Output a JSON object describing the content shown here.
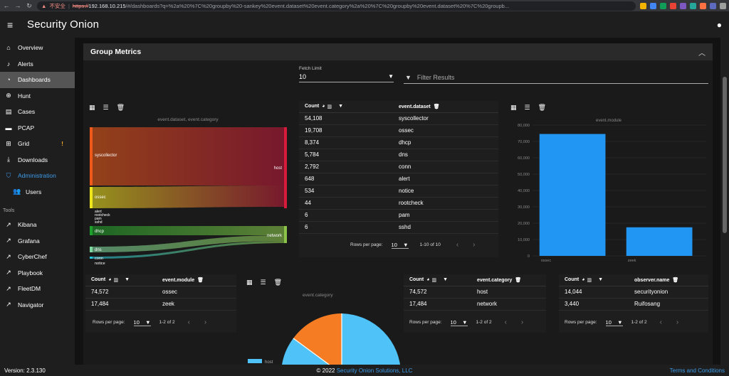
{
  "browser": {
    "security_warning": "不安全",
    "url_scheme": "https://",
    "url_host": "192.168.10.215",
    "url_rest": "/#/dashboards?q=%2a%20%7C%20groupby%20-sankey%20event.dataset%20event.category%2a%20%7C%20groupby%20event.dataset%20%7C%20groupb..."
  },
  "header": {
    "brand": "Security Onion"
  },
  "sidebar": {
    "items": [
      {
        "label": "Overview",
        "icon": "home-icon"
      },
      {
        "label": "Alerts",
        "icon": "bell-icon"
      },
      {
        "label": "Dashboards",
        "icon": "pie-icon"
      },
      {
        "label": "Hunt",
        "icon": "crosshair-icon"
      },
      {
        "label": "Cases",
        "icon": "briefcase-icon"
      },
      {
        "label": "PCAP",
        "icon": "folder-icon"
      },
      {
        "label": "Grid",
        "icon": "grid-icon",
        "badge": "!"
      },
      {
        "label": "Downloads",
        "icon": "download-icon"
      },
      {
        "label": "Administration",
        "icon": "shield-icon"
      },
      {
        "label": "Users",
        "icon": "users-icon"
      }
    ],
    "tools_label": "Tools",
    "tools": [
      "Kibana",
      "Grafana",
      "CyberChef",
      "Playbook",
      "FleetDM",
      "Navigator"
    ]
  },
  "group": {
    "title": "Group Metrics"
  },
  "fetch": {
    "label": "Fetch Limit",
    "value": "10"
  },
  "filter": {
    "placeholder": "Filter Results"
  },
  "sankey": {
    "title": "event.dataset, event.category",
    "sources": [
      "syscollector",
      "ossec",
      "alert",
      "rootcheck",
      "pam",
      "sshd",
      "dhcp",
      "dns",
      "conn",
      "notice"
    ],
    "targets": [
      "host",
      "network"
    ]
  },
  "dataset_table": {
    "headers": [
      "Count",
      "event.dataset"
    ],
    "rows": [
      [
        "54,108",
        "syscollector"
      ],
      [
        "19,708",
        "ossec"
      ],
      [
        "8,374",
        "dhcp"
      ],
      [
        "5,784",
        "dns"
      ],
      [
        "2,792",
        "conn"
      ],
      [
        "648",
        "alert"
      ],
      [
        "534",
        "notice"
      ],
      [
        "44",
        "rootcheck"
      ],
      [
        "6",
        "pam"
      ],
      [
        "6",
        "sshd"
      ]
    ],
    "rows_per_page_label": "Rows per page:",
    "rows_per_page": "10",
    "range": "1-10 of 10"
  },
  "chart_data": {
    "type": "bar",
    "title": "event.module",
    "categories": [
      "ossec",
      "zeek"
    ],
    "values": [
      74572,
      17484
    ],
    "ylim": [
      0,
      80000
    ],
    "yticks": [
      "0",
      "10,000",
      "20,000",
      "30,000",
      "40,000",
      "50,000",
      "60,000",
      "70,000",
      "80,000"
    ],
    "color": "#2196f3"
  },
  "module_table": {
    "headers": [
      "Count",
      "event.module"
    ],
    "rows": [
      [
        "74,572",
        "ossec"
      ],
      [
        "17,484",
        "zeek"
      ]
    ],
    "rows_per_page_label": "Rows per page:",
    "rows_per_page": "10",
    "range": "1-2 of 2"
  },
  "pie": {
    "title": "event.category",
    "legend": [
      "host"
    ],
    "colors": [
      "#4fc3f7",
      "#f57c22"
    ]
  },
  "category_table": {
    "headers": [
      "Count",
      "event.category"
    ],
    "rows": [
      [
        "74,572",
        "host"
      ],
      [
        "17,484",
        "network"
      ]
    ],
    "rows_per_page_label": "Rows per page:",
    "rows_per_page": "10",
    "range": "1-2 of 2"
  },
  "observer_table": {
    "headers": [
      "Count",
      "observer.name"
    ],
    "rows": [
      [
        "14,044",
        "securityonion"
      ],
      [
        "3,440",
        "Ruifosang"
      ]
    ],
    "rows_per_page_label": "Rows per page:",
    "rows_per_page": "10",
    "range": "1-2 of 2"
  },
  "footer": {
    "version": "Version: 2.3.130",
    "copyright": "© 2022",
    "company": "Security Onion Solutions, LLC",
    "terms": "Terms and Conditions"
  }
}
